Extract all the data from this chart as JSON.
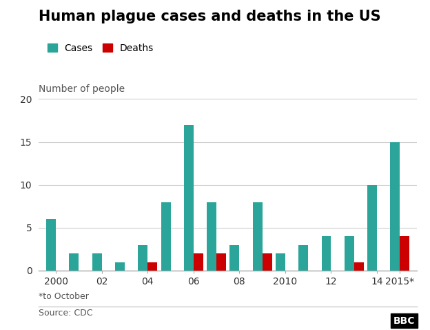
{
  "title": "Human plague cases and deaths in the US",
  "ylabel": "Number of people",
  "footnote": "*to October",
  "source": "Source: CDC",
  "bbc_logo": "BBC",
  "years": [
    2000,
    2001,
    2002,
    2003,
    2004,
    2005,
    2006,
    2007,
    2008,
    2009,
    2010,
    2011,
    2012,
    2013,
    2014,
    2015
  ],
  "x_tick_labels": [
    "2000",
    "02",
    "04",
    "06",
    "08",
    "2010",
    "12",
    "14",
    "2015*"
  ],
  "x_tick_positions": [
    0,
    2,
    4,
    6,
    8,
    10,
    12,
    14,
    15
  ],
  "cases": [
    6,
    2,
    2,
    1,
    3,
    8,
    17,
    8,
    3,
    8,
    2,
    3,
    4,
    4,
    10,
    15
  ],
  "deaths": [
    0,
    0,
    0,
    0,
    1,
    0,
    2,
    2,
    0,
    2,
    0,
    0,
    0,
    1,
    0,
    4
  ],
  "cases_color": "#2ba59a",
  "deaths_color": "#cc0000",
  "bg_color": "#ffffff",
  "grid_color": "#cccccc",
  "title_fontsize": 15,
  "label_fontsize": 10,
  "tick_fontsize": 10,
  "ylim": [
    0,
    20
  ],
  "yticks": [
    0,
    5,
    10,
    15,
    20
  ],
  "bar_width": 0.42,
  "legend_cases": "Cases",
  "legend_deaths": "Deaths"
}
